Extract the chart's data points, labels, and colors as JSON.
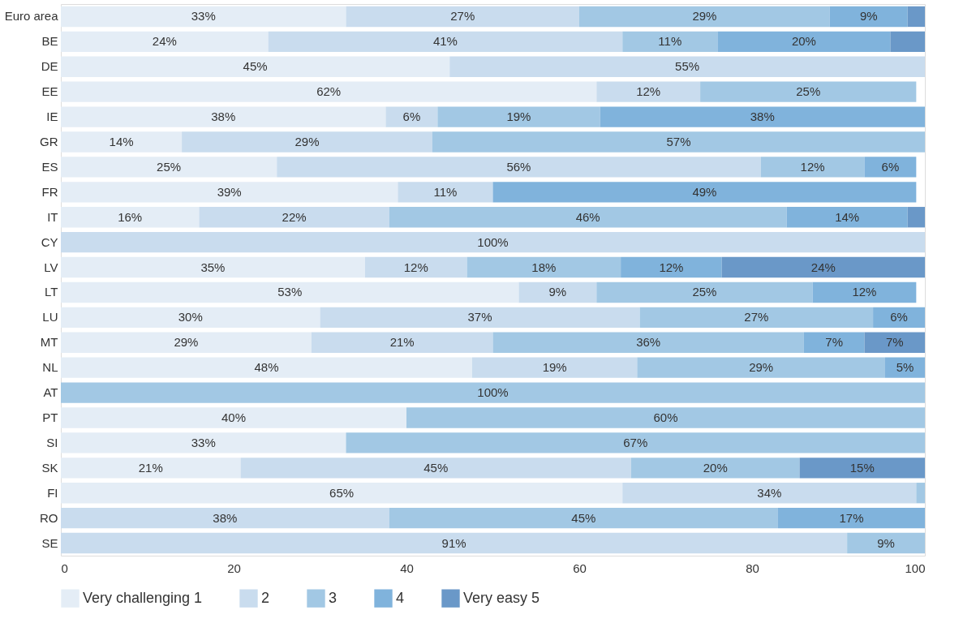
{
  "chart_data": {
    "type": "bar",
    "orientation": "horizontal",
    "stacked": true,
    "categories": [
      "Euro area",
      "BE",
      "DE",
      "EE",
      "IE",
      "GR",
      "ES",
      "FR",
      "IT",
      "CY",
      "LV",
      "LT",
      "LU",
      "MT",
      "NL",
      "AT",
      "PT",
      "SI",
      "SK",
      "FI",
      "RO",
      "SE"
    ],
    "series": [
      {
        "name": "Very challenging 1",
        "color": "#e4edf6",
        "values": [
          33,
          24,
          45,
          62,
          37.6,
          14,
          25,
          39,
          16,
          null,
          35.2,
          53,
          30,
          29,
          47.6,
          null,
          40,
          33,
          20.8,
          65,
          null,
          null
        ],
        "value_labels": [
          "33%",
          "24%",
          "45%",
          "62%",
          "38%",
          "14%",
          "25%",
          "39%",
          "16%",
          null,
          "35%",
          "53%",
          "30%",
          "29%",
          "48%",
          null,
          "40%",
          "33%",
          "21%",
          "65%",
          null,
          null
        ]
      },
      {
        "name": "2",
        "color": "#c9dcee",
        "values": [
          27,
          41,
          55,
          12,
          6,
          29,
          56,
          11,
          22,
          100,
          11.8,
          9,
          37,
          21,
          19.1,
          null,
          null,
          null,
          45.2,
          34,
          38,
          91
        ],
        "value_labels": [
          "27%",
          "41%",
          "55%",
          "12%",
          "6%",
          "29%",
          "56%",
          "11%",
          "22%",
          "100%",
          "12%",
          "9%",
          "37%",
          "21%",
          "19%",
          null,
          null,
          null,
          "45%",
          "34%",
          "38%",
          "91%"
        ]
      },
      {
        "name": "3",
        "color": "#a2c8e4",
        "values": [
          29,
          11,
          null,
          25,
          18.8,
          57,
          12,
          null,
          46,
          null,
          17.8,
          25,
          27,
          36,
          28.7,
          100,
          60,
          67,
          19.5,
          1,
          45,
          9
        ],
        "value_labels": [
          "29%",
          "11%",
          null,
          "25%",
          "19%",
          "57%",
          "12%",
          null,
          "46%",
          null,
          "18%",
          "25%",
          "27%",
          "36%",
          "29%",
          "100%",
          "60%",
          "67%",
          "20%",
          null,
          "45%",
          "9%"
        ]
      },
      {
        "name": "4",
        "color": "#80b3dc",
        "values": [
          9,
          20,
          null,
          null,
          37.6,
          null,
          6,
          49,
          14,
          null,
          11.7,
          12,
          6,
          7,
          4.6,
          null,
          null,
          null,
          null,
          null,
          17,
          null
        ],
        "value_labels": [
          "9%",
          "20%",
          null,
          null,
          "38%",
          null,
          "6%",
          "49%",
          "14%",
          null,
          "12%",
          "12%",
          "6%",
          "7%",
          "5%",
          null,
          null,
          null,
          null,
          null,
          "17%",
          null
        ]
      },
      {
        "name": "Very easy 5",
        "color": "#6a98c8",
        "values": [
          2,
          4,
          null,
          null,
          null,
          null,
          null,
          null,
          2,
          null,
          23.5,
          null,
          null,
          7,
          null,
          null,
          null,
          null,
          14.5,
          null,
          null,
          null
        ],
        "value_labels": [
          null,
          null,
          null,
          null,
          null,
          null,
          null,
          null,
          null,
          null,
          "24%",
          null,
          null,
          "7%",
          null,
          null,
          null,
          null,
          "15%",
          null,
          null,
          null
        ]
      }
    ],
    "xlim": [
      0,
      100
    ],
    "xticks": [
      0,
      20,
      40,
      60,
      80,
      100
    ],
    "grid": false,
    "legend": "bottom"
  }
}
